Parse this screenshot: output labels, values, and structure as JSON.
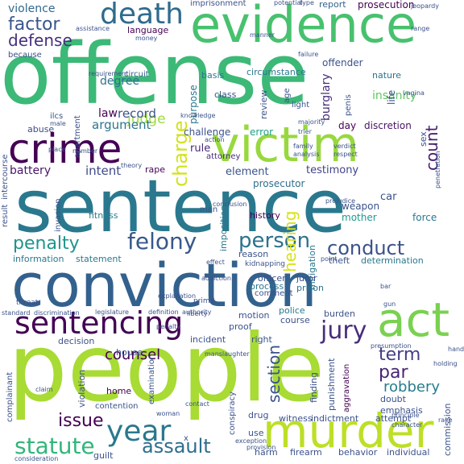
{
  "words": [
    {
      "text": "offense",
      "color": "#3cb977"
    },
    {
      "text": "people",
      "color": "#a8db34"
    },
    {
      "text": "sentence",
      "color": "#2a788e"
    },
    {
      "text": "conviction",
      "color": "#33618d"
    },
    {
      "text": "evidence",
      "color": "#48c16e"
    },
    {
      "text": "victim",
      "color": "#98d83e"
    },
    {
      "text": "crime",
      "color": "#440154"
    },
    {
      "text": "murder",
      "color": "#bddf26"
    },
    {
      "text": "act",
      "color": "#7ad151"
    },
    {
      "text": "sentencing",
      "color": "#440154"
    },
    {
      "text": "death",
      "color": "#2f6b8e"
    },
    {
      "text": "felony",
      "color": "#38588c"
    },
    {
      "text": "penalty",
      "color": "#1f948c"
    },
    {
      "text": "conduct",
      "color": "#3b528b"
    },
    {
      "text": "jury",
      "color": "#472d7b"
    },
    {
      "text": "person",
      "color": "#2c728e"
    },
    {
      "text": "charge",
      "color": "#d2e21b"
    },
    {
      "text": "year",
      "color": "#2a788e"
    },
    {
      "text": "statute",
      "color": "#32b67a"
    },
    {
      "text": "assault",
      "color": "#2e6e8e"
    },
    {
      "text": "term",
      "color": "#433e85"
    },
    {
      "text": "par",
      "color": "#482475"
    },
    {
      "text": "robbery",
      "color": "#287d8e"
    },
    {
      "text": "section",
      "color": "#3b528b"
    },
    {
      "text": "count",
      "color": "#482071"
    },
    {
      "text": "hearing",
      "color": "#d8e219"
    },
    {
      "text": "issue",
      "color": "#440154"
    },
    {
      "text": "counsel",
      "color": "#440154"
    },
    {
      "text": "factor",
      "color": "#39568c"
    },
    {
      "text": "defense",
      "color": "#46307e"
    },
    {
      "text": "violence",
      "color": "#31688e"
    },
    {
      "text": "judge",
      "color": "#9fda3a"
    },
    {
      "text": "argument",
      "color": "#2b758e"
    },
    {
      "text": "intent",
      "color": "#3e4989"
    },
    {
      "text": "testimony",
      "color": "#414487"
    },
    {
      "text": "battery",
      "color": "#481769"
    },
    {
      "text": "element",
      "color": "#3b528b"
    },
    {
      "text": "prosecutor",
      "color": "#2e6e8e"
    },
    {
      "text": "rule",
      "color": "#472a7a"
    },
    {
      "text": "record",
      "color": "#3b528b"
    },
    {
      "text": "degree",
      "color": "#2d708e"
    },
    {
      "text": "law",
      "color": "#440154"
    },
    {
      "text": "imprisonment",
      "color": "#3b528b"
    },
    {
      "text": "report",
      "color": "#33638d"
    },
    {
      "text": "prosecution",
      "color": "#440154"
    },
    {
      "text": "offender",
      "color": "#3b528b"
    },
    {
      "text": "nature",
      "color": "#2d708e"
    },
    {
      "text": "circumstance",
      "color": "#2a788e"
    },
    {
      "text": "circuit",
      "color": "#35608d"
    },
    {
      "text": "basis",
      "color": "#2a788e"
    },
    {
      "text": "purpose",
      "color": "#2a788e"
    },
    {
      "text": "class",
      "color": "#3b528b"
    },
    {
      "text": "review",
      "color": "#3b528b"
    },
    {
      "text": "burglary",
      "color": "#472d7b"
    },
    {
      "text": "insanity",
      "color": "#5ec962"
    },
    {
      "text": "life",
      "color": "#3b528b"
    },
    {
      "text": "challenge",
      "color": "#3b528b"
    },
    {
      "text": "error",
      "color": "#1fa187"
    },
    {
      "text": "day",
      "color": "#440154"
    },
    {
      "text": "discretion",
      "color": "#471365"
    },
    {
      "text": "abuse",
      "color": "#3e4989"
    },
    {
      "text": "attorney",
      "color": "#472d7b"
    },
    {
      "text": "rape",
      "color": "#440154"
    },
    {
      "text": "invasion",
      "color": "#3b528b"
    },
    {
      "text": "fitness",
      "color": "#287d8e"
    },
    {
      "text": "history",
      "color": "#440154"
    },
    {
      "text": "weapon",
      "color": "#3b528b"
    },
    {
      "text": "mother",
      "color": "#1f9a8a"
    },
    {
      "text": "car",
      "color": "#3b528b"
    },
    {
      "text": "force",
      "color": "#2a788e"
    },
    {
      "text": "information",
      "color": "#2a788e"
    },
    {
      "text": "statement",
      "color": "#2a788e"
    },
    {
      "text": "imposition",
      "color": "#2a788e"
    },
    {
      "text": "reason",
      "color": "#3b528b"
    },
    {
      "text": "mitigation",
      "color": "#2a788e"
    },
    {
      "text": "theft",
      "color": "#3b528b"
    },
    {
      "text": "determination",
      "color": "#2a788e"
    },
    {
      "text": "officer",
      "color": "#3b528b"
    },
    {
      "text": "juror",
      "color": "#3b528b"
    },
    {
      "text": "prison",
      "color": "#2c728e"
    },
    {
      "text": "process",
      "color": "#2a788e"
    },
    {
      "text": "comment",
      "color": "#3b528b"
    },
    {
      "text": "police",
      "color": "#2a788e"
    },
    {
      "text": "course",
      "color": "#3b528b"
    },
    {
      "text": "burden",
      "color": "#3b528b"
    },
    {
      "text": "proof",
      "color": "#3b528b"
    },
    {
      "text": "motion",
      "color": "#3b528b"
    },
    {
      "text": "incident",
      "color": "#3b528b"
    },
    {
      "text": "right",
      "color": "#3b528b"
    },
    {
      "text": "decision",
      "color": "#3b528b"
    },
    {
      "text": "house",
      "color": "#3b528b"
    },
    {
      "text": "home",
      "color": "#440154"
    },
    {
      "text": "violation",
      "color": "#3b528b"
    },
    {
      "text": "examination",
      "color": "#3b528b"
    },
    {
      "text": "contention",
      "color": "#3b528b"
    },
    {
      "text": "conspiracy",
      "color": "#3b528b"
    },
    {
      "text": "drug",
      "color": "#3b528b"
    },
    {
      "text": "witness",
      "color": "#3b528b"
    },
    {
      "text": "indictment",
      "color": "#3b528b"
    },
    {
      "text": "finding",
      "color": "#3b528b"
    },
    {
      "text": "punishment",
      "color": "#3b528b"
    },
    {
      "text": "aggravation",
      "color": "#440154"
    },
    {
      "text": "doubt",
      "color": "#3b528b"
    },
    {
      "text": "emphasis",
      "color": "#3b528b"
    },
    {
      "text": "attempt",
      "color": "#3b528b"
    },
    {
      "text": "complainant",
      "color": "#3b528b"
    },
    {
      "text": "use",
      "color": "#3b528b"
    },
    {
      "text": "harm",
      "color": "#3b528b"
    },
    {
      "text": "firearm",
      "color": "#3b528b"
    },
    {
      "text": "behavior",
      "color": "#3b528b"
    },
    {
      "text": "individual",
      "color": "#3b528b"
    },
    {
      "text": "commission",
      "color": "#3b528b"
    },
    {
      "text": "guilt",
      "color": "#3b528b"
    },
    {
      "text": "result",
      "color": "#3b528b"
    },
    {
      "text": "intercourse",
      "color": "#3b528b"
    },
    {
      "text": "apartment",
      "color": "#3b528b"
    },
    {
      "text": "ilcs",
      "color": "#3b528b"
    },
    {
      "text": "man",
      "color": "#3b528b"
    },
    {
      "text": "language",
      "color": "#440154"
    },
    {
      "text": "sex",
      "color": "#3b528b"
    },
    {
      "text": "penis",
      "color": "#3b528b"
    },
    {
      "text": "age",
      "color": "#3b528b"
    },
    {
      "text": "light",
      "color": "#3b528b"
    },
    {
      "text": "x",
      "color": "#3b528b"
    },
    {
      "text": "kidnapping",
      "color": "#3b528b"
    },
    {
      "text": "prima",
      "color": "#3b528b"
    },
    {
      "text": "threat",
      "color": "#3b528b"
    },
    {
      "text": "standard",
      "color": "#3b528b"
    },
    {
      "text": "discrimination",
      "color": "#3b528b"
    },
    {
      "text": "liberty",
      "color": "#3b528b"
    },
    {
      "text": "manslaughter",
      "color": "#3b528b"
    },
    {
      "text": "presumption",
      "color": "#3b528b"
    },
    {
      "text": "principle",
      "color": "#3b528b"
    },
    {
      "text": "character",
      "color": "#3b528b"
    },
    {
      "text": "consideration",
      "color": "#3b528b"
    },
    {
      "text": "exception",
      "color": "#3b528b"
    },
    {
      "text": "provision",
      "color": "#3b528b"
    },
    {
      "text": "claim",
      "color": "#3b528b"
    },
    {
      "text": "contact",
      "color": "#3b528b"
    },
    {
      "text": "woman",
      "color": "#3b528b"
    },
    {
      "text": "race",
      "color": "#3b528b"
    },
    {
      "text": "gun",
      "color": "#3b528b"
    },
    {
      "text": "hand",
      "color": "#3b528b"
    },
    {
      "text": "holding",
      "color": "#3b528b"
    },
    {
      "text": "bar",
      "color": "#3b528b"
    },
    {
      "text": "point",
      "color": "#3b528b"
    },
    {
      "text": "verdict",
      "color": "#3b528b"
    },
    {
      "text": "respect",
      "color": "#3b528b"
    },
    {
      "text": "family",
      "color": "#3b528b"
    },
    {
      "text": "analysis",
      "color": "#3b528b"
    },
    {
      "text": "majority",
      "color": "#3b528b"
    },
    {
      "text": "trier",
      "color": "#3b528b"
    },
    {
      "text": "action",
      "color": "#3b528b"
    },
    {
      "text": "conclusion",
      "color": "#3b528b"
    },
    {
      "text": "theory",
      "color": "#3b528b"
    },
    {
      "text": "place",
      "color": "#3b528b"
    },
    {
      "text": "male",
      "color": "#3b528b"
    },
    {
      "text": "knowledge",
      "color": "#3b528b"
    },
    {
      "text": "requirement",
      "color": "#3b528b"
    },
    {
      "text": "failure",
      "color": "#3b528b"
    },
    {
      "text": "vagina",
      "color": "#3b528b"
    },
    {
      "text": "range",
      "color": "#3b528b"
    },
    {
      "text": "manner",
      "color": "#3b528b"
    },
    {
      "text": "money",
      "color": "#3b528b"
    },
    {
      "text": "assistance",
      "color": "#3b528b"
    },
    {
      "text": "because",
      "color": "#3b528b"
    },
    {
      "text": "type",
      "color": "#3b528b"
    },
    {
      "text": "potential",
      "color": "#3b528b"
    },
    {
      "text": "jeopardy",
      "color": "#3b528b"
    },
    {
      "text": "penetration",
      "color": "#3b528b"
    },
    {
      "text": "prejudice",
      "color": "#3b528b"
    },
    {
      "text": "explanation",
      "color": "#3b528b"
    },
    {
      "text": "legislature",
      "color": "#3b528b"
    },
    {
      "text": "definition",
      "color": "#3b528b"
    },
    {
      "text": "authority",
      "color": "#3b528b"
    },
    {
      "text": "penalty",
      "color": "#3b528b"
    },
    {
      "text": "addiction",
      "color": "#3b528b"
    },
    {
      "text": "effect",
      "color": "#3b528b"
    },
    {
      "text": "number",
      "color": "#3b528b"
    }
  ]
}
